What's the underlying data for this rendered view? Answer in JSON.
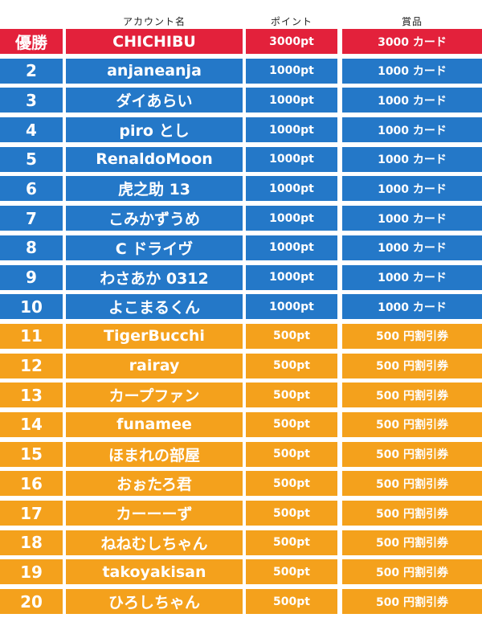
{
  "header": {
    "name": "アカウント名",
    "points": "ポイント",
    "prize": "賞品"
  },
  "colors": {
    "first": "#e3213b",
    "blue": "#2478c8",
    "orange": "#f4a11c"
  },
  "rows": [
    {
      "rank": "優勝",
      "name": "CHICHIBU",
      "points": "3000pt",
      "prize": "3000 カード",
      "tier": "first"
    },
    {
      "rank": "2",
      "name": "anjaneanja",
      "points": "1000pt",
      "prize": "1000 カード",
      "tier": "blue"
    },
    {
      "rank": "3",
      "name": "ダイあらい",
      "points": "1000pt",
      "prize": "1000 カード",
      "tier": "blue"
    },
    {
      "rank": "4",
      "name": "piro とし",
      "points": "1000pt",
      "prize": "1000 カード",
      "tier": "blue"
    },
    {
      "rank": "5",
      "name": "RenaldoMoon",
      "points": "1000pt",
      "prize": "1000 カード",
      "tier": "blue"
    },
    {
      "rank": "6",
      "name": "虎之助 13",
      "points": "1000pt",
      "prize": "1000 カード",
      "tier": "blue"
    },
    {
      "rank": "7",
      "name": "こみかずうめ",
      "points": "1000pt",
      "prize": "1000 カード",
      "tier": "blue"
    },
    {
      "rank": "8",
      "name": "C ドライヴ",
      "points": "1000pt",
      "prize": "1000 カード",
      "tier": "blue"
    },
    {
      "rank": "9",
      "name": "わさあか 0312",
      "points": "1000pt",
      "prize": "1000 カード",
      "tier": "blue"
    },
    {
      "rank": "10",
      "name": "よこまるくん",
      "points": "1000pt",
      "prize": "1000 カード",
      "tier": "blue"
    },
    {
      "rank": "11",
      "name": "TigerBucchi",
      "points": "500pt",
      "prize": "500 円割引券",
      "tier": "orange"
    },
    {
      "rank": "12",
      "name": "rairay",
      "points": "500pt",
      "prize": "500 円割引券",
      "tier": "orange"
    },
    {
      "rank": "13",
      "name": "カープファン",
      "points": "500pt",
      "prize": "500 円割引券",
      "tier": "orange"
    },
    {
      "rank": "14",
      "name": "funamee",
      "points": "500pt",
      "prize": "500 円割引券",
      "tier": "orange"
    },
    {
      "rank": "15",
      "name": "ほまれの部屋",
      "points": "500pt",
      "prize": "500 円割引券",
      "tier": "orange"
    },
    {
      "rank": "16",
      "name": "おぉたろ君",
      "points": "500pt",
      "prize": "500 円割引券",
      "tier": "orange"
    },
    {
      "rank": "17",
      "name": "カーーーず",
      "points": "500pt",
      "prize": "500 円割引券",
      "tier": "orange"
    },
    {
      "rank": "18",
      "name": "ねねむしちゃん",
      "points": "500pt",
      "prize": "500 円割引券",
      "tier": "orange"
    },
    {
      "rank": "19",
      "name": "takoyakisan",
      "points": "500pt",
      "prize": "500 円割引券",
      "tier": "orange"
    },
    {
      "rank": "20",
      "name": "ひろしちゃん",
      "points": "500pt",
      "prize": "500 円割引券",
      "tier": "orange"
    }
  ]
}
